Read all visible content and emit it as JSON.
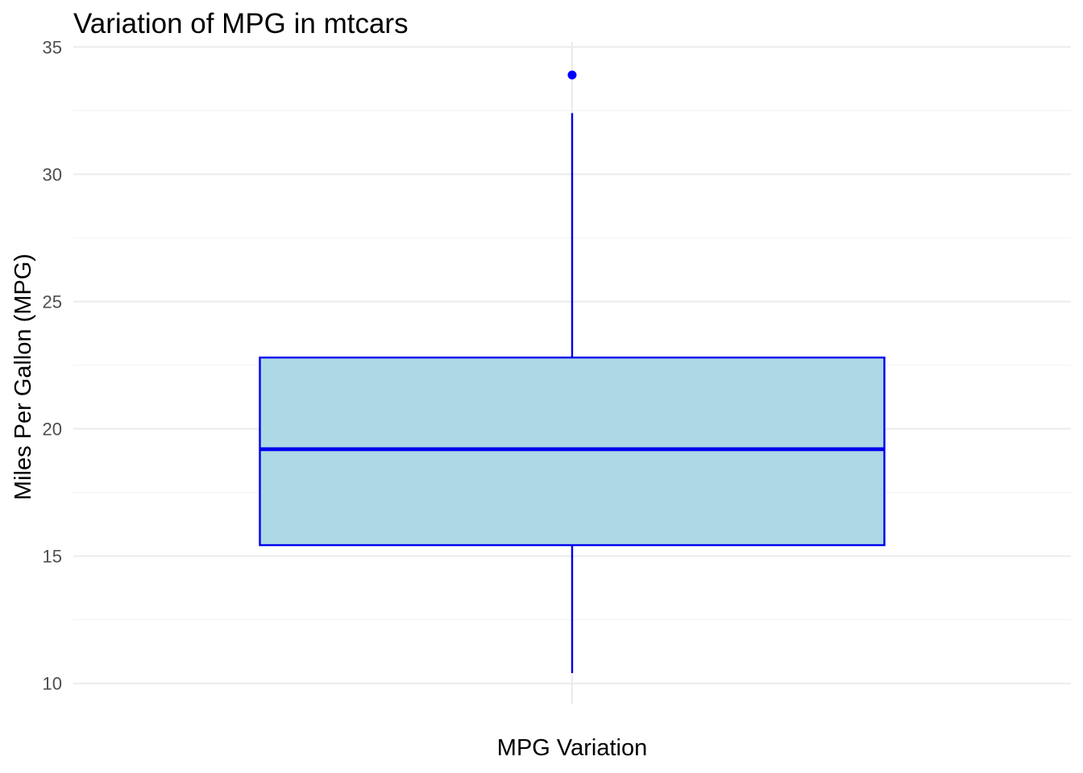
{
  "chart_data": {
    "type": "boxplot",
    "title": "Variation of MPG in mtcars",
    "xlabel": "MPG Variation",
    "ylabel": "Miles Per Gallon (MPG)",
    "ylim": [
      9.2,
      35.2
    ],
    "y_ticks": [
      10,
      15,
      20,
      25,
      30,
      35
    ],
    "y_tick_labels": [
      "10",
      "15",
      "20",
      "25",
      "30",
      "35"
    ],
    "grid": true,
    "legend": "none",
    "box": {
      "whisker_low": 10.4,
      "q1": 15.43,
      "median": 19.2,
      "q3": 22.8,
      "whisker_high": 32.4,
      "outliers": [
        33.9
      ]
    },
    "colors": {
      "box_fill": "#add8e6",
      "box_stroke": "#0000ee",
      "outlier": "#0000ff",
      "grid_major": "#ebebeb",
      "grid_minor": "#f3f3f3",
      "tick_text": "#4d4d4d"
    }
  }
}
